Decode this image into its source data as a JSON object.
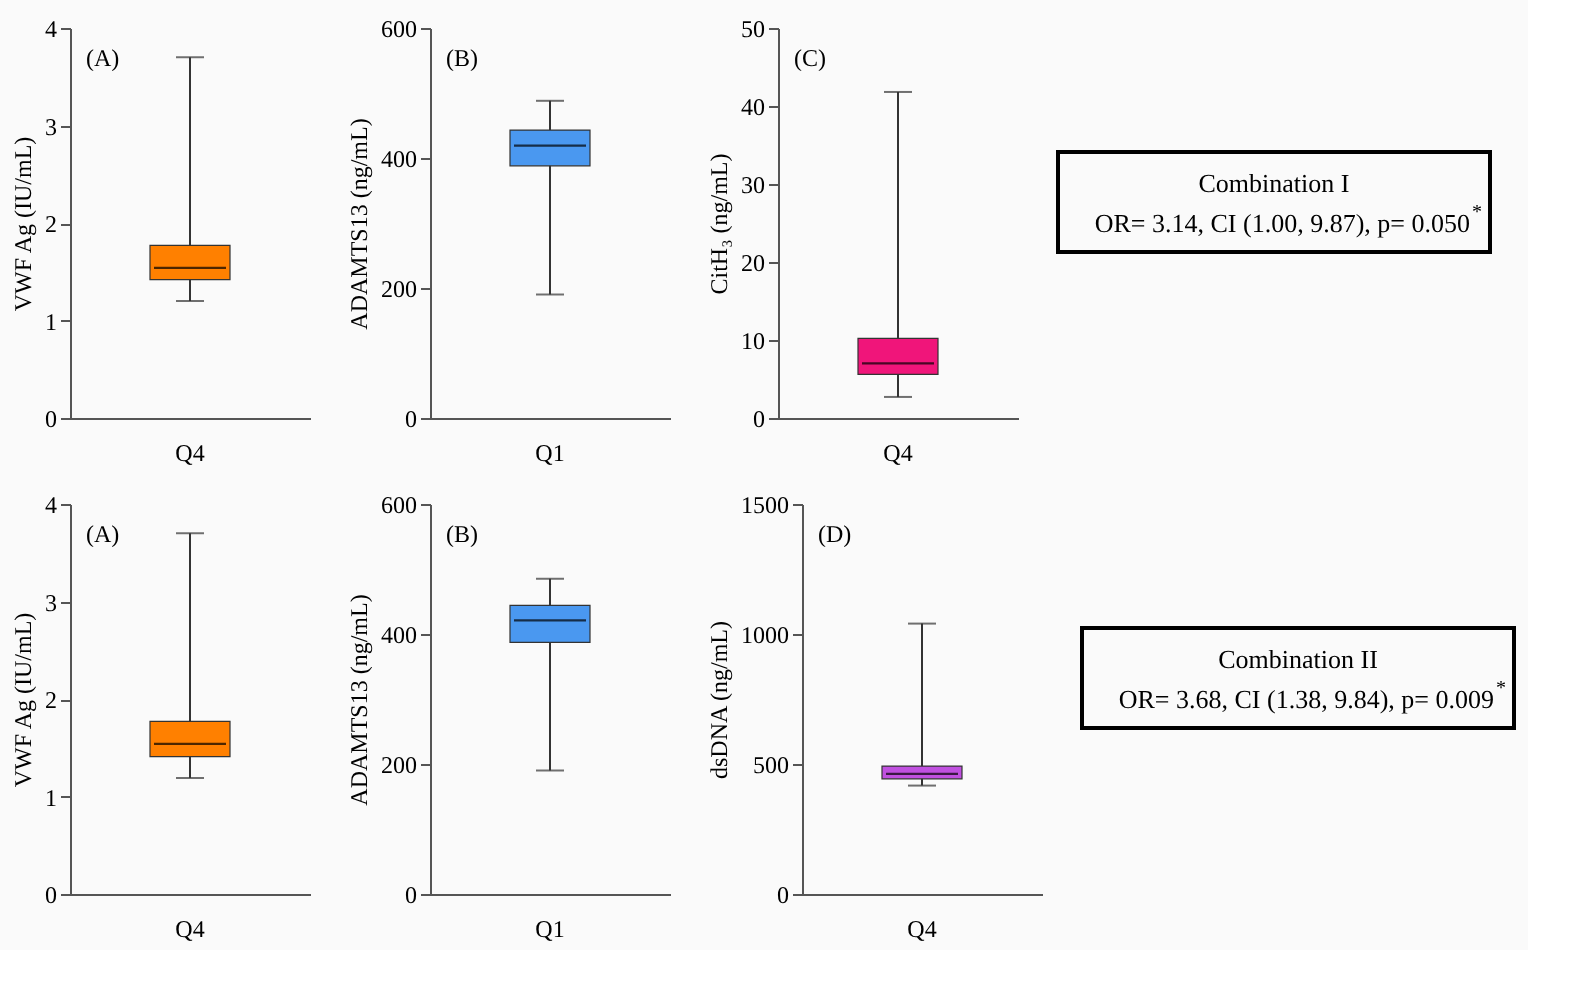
{
  "chart_data": [
    {
      "type": "box",
      "categories": [
        "Q4"
      ],
      "ylabel": "VWF Ag (IU/mL)",
      "annotations": [
        "(A)"
      ],
      "color": "#ff8000",
      "ylim": [
        0,
        4
      ],
      "yticks": [
        0,
        1,
        2,
        3,
        4
      ],
      "boxes": [
        {
          "low": 1.2,
          "q1": 1.42,
          "median": 1.54,
          "q3": 1.77,
          "high": 3.7
        }
      ]
    },
    {
      "type": "box",
      "categories": [
        "Q1"
      ],
      "ylabel": "ADAMTS13 (ng/mL)",
      "annotations": [
        "(B)"
      ],
      "color": "#4a98f0",
      "ylim": [
        0,
        600
      ],
      "yticks": [
        0,
        200,
        400,
        600
      ],
      "boxes": [
        {
          "low": 190,
          "q1": 388,
          "median": 419,
          "q3": 443,
          "high": 488
        }
      ]
    },
    {
      "type": "box",
      "categories": [
        "Q4"
      ],
      "ylabel": "CitH₃ (ng/mL)",
      "annotations": [
        "(C)"
      ],
      "color": "#f0157a",
      "ylim": [
        0,
        50
      ],
      "yticks": [
        0,
        10,
        20,
        30,
        40,
        50
      ],
      "boxes": [
        {
          "low": 2.7,
          "q1": 5.6,
          "median": 7.0,
          "q3": 10.2,
          "high": 41.8
        }
      ]
    },
    {
      "type": "other",
      "title": "Combination I",
      "annotations": [
        "OR= 3.14, CI (1.00, 9.87), p= 0.050$^{*}$"
      ]
    },
    {
      "type": "box",
      "categories": [
        "Q4"
      ],
      "ylabel": "VWF Ag (IU/mL)",
      "annotations": [
        "(A)"
      ],
      "color": "#ff8000",
      "ylim": [
        0,
        4
      ],
      "yticks": [
        0,
        1,
        2,
        3,
        4
      ],
      "boxes": [
        {
          "low": 1.19,
          "q1": 1.41,
          "median": 1.54,
          "q3": 1.77,
          "high": 3.7
        }
      ]
    },
    {
      "type": "box",
      "categories": [
        "Q1"
      ],
      "ylabel": "ADAMTS13 (ng/mL)",
      "annotations": [
        "(B)"
      ],
      "color": "#4a98f0",
      "ylim": [
        0,
        600
      ],
      "yticks": [
        0,
        200,
        400,
        600
      ],
      "boxes": [
        {
          "low": 190,
          "q1": 387,
          "median": 421,
          "q3": 444,
          "high": 485
        }
      ]
    },
    {
      "type": "box",
      "categories": [
        "Q4"
      ],
      "ylabel": "dsDNA (ng/mL)",
      "annotations": [
        "(D)"
      ],
      "color": "#c050e0",
      "ylim": [
        0,
        1500
      ],
      "yticks": [
        0,
        500,
        1000,
        1500
      ],
      "boxes": [
        {
          "low": 417,
          "q1": 443,
          "median": 462,
          "q3": 492,
          "high": 1040
        }
      ]
    },
    {
      "type": "other",
      "title": "Combination II",
      "annotations": [
        "OR= 3.68, CI (1.38, 9.84), p= 0.009$^{*}$"
      ]
    }
  ]
}
